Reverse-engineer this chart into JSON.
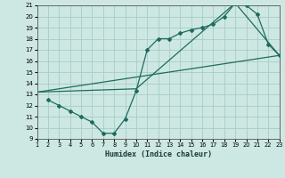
{
  "xlabel": "Humidex (Indice chaleur)",
  "bg_color": "#cde8e2",
  "grid_color": "#a8ccc6",
  "line_color": "#1e6b60",
  "xlim": [
    1,
    23
  ],
  "ylim": [
    9,
    21
  ],
  "xticks": [
    1,
    2,
    3,
    4,
    5,
    6,
    7,
    8,
    9,
    10,
    11,
    12,
    13,
    14,
    15,
    16,
    17,
    18,
    19,
    20,
    21,
    22,
    23
  ],
  "yticks": [
    9,
    10,
    11,
    12,
    13,
    14,
    15,
    16,
    17,
    18,
    19,
    20,
    21
  ],
  "line1_x": [
    2,
    3,
    4,
    5,
    6,
    7,
    8,
    9,
    10,
    11,
    12,
    13,
    14,
    15,
    16,
    17,
    18,
    19,
    20,
    21,
    22,
    23
  ],
  "line1_y": [
    12.5,
    12.0,
    11.5,
    11.0,
    10.5,
    9.5,
    9.5,
    10.8,
    13.3,
    17.0,
    18.0,
    18.0,
    18.5,
    18.8,
    19.0,
    19.3,
    20.0,
    21.2,
    21.0,
    20.2,
    17.5,
    16.5
  ],
  "line2_x": [
    1,
    23
  ],
  "line2_y": [
    13.2,
    16.5
  ],
  "line3_x": [
    1,
    10,
    19,
    23
  ],
  "line3_y": [
    13.2,
    13.5,
    21.2,
    16.5
  ]
}
